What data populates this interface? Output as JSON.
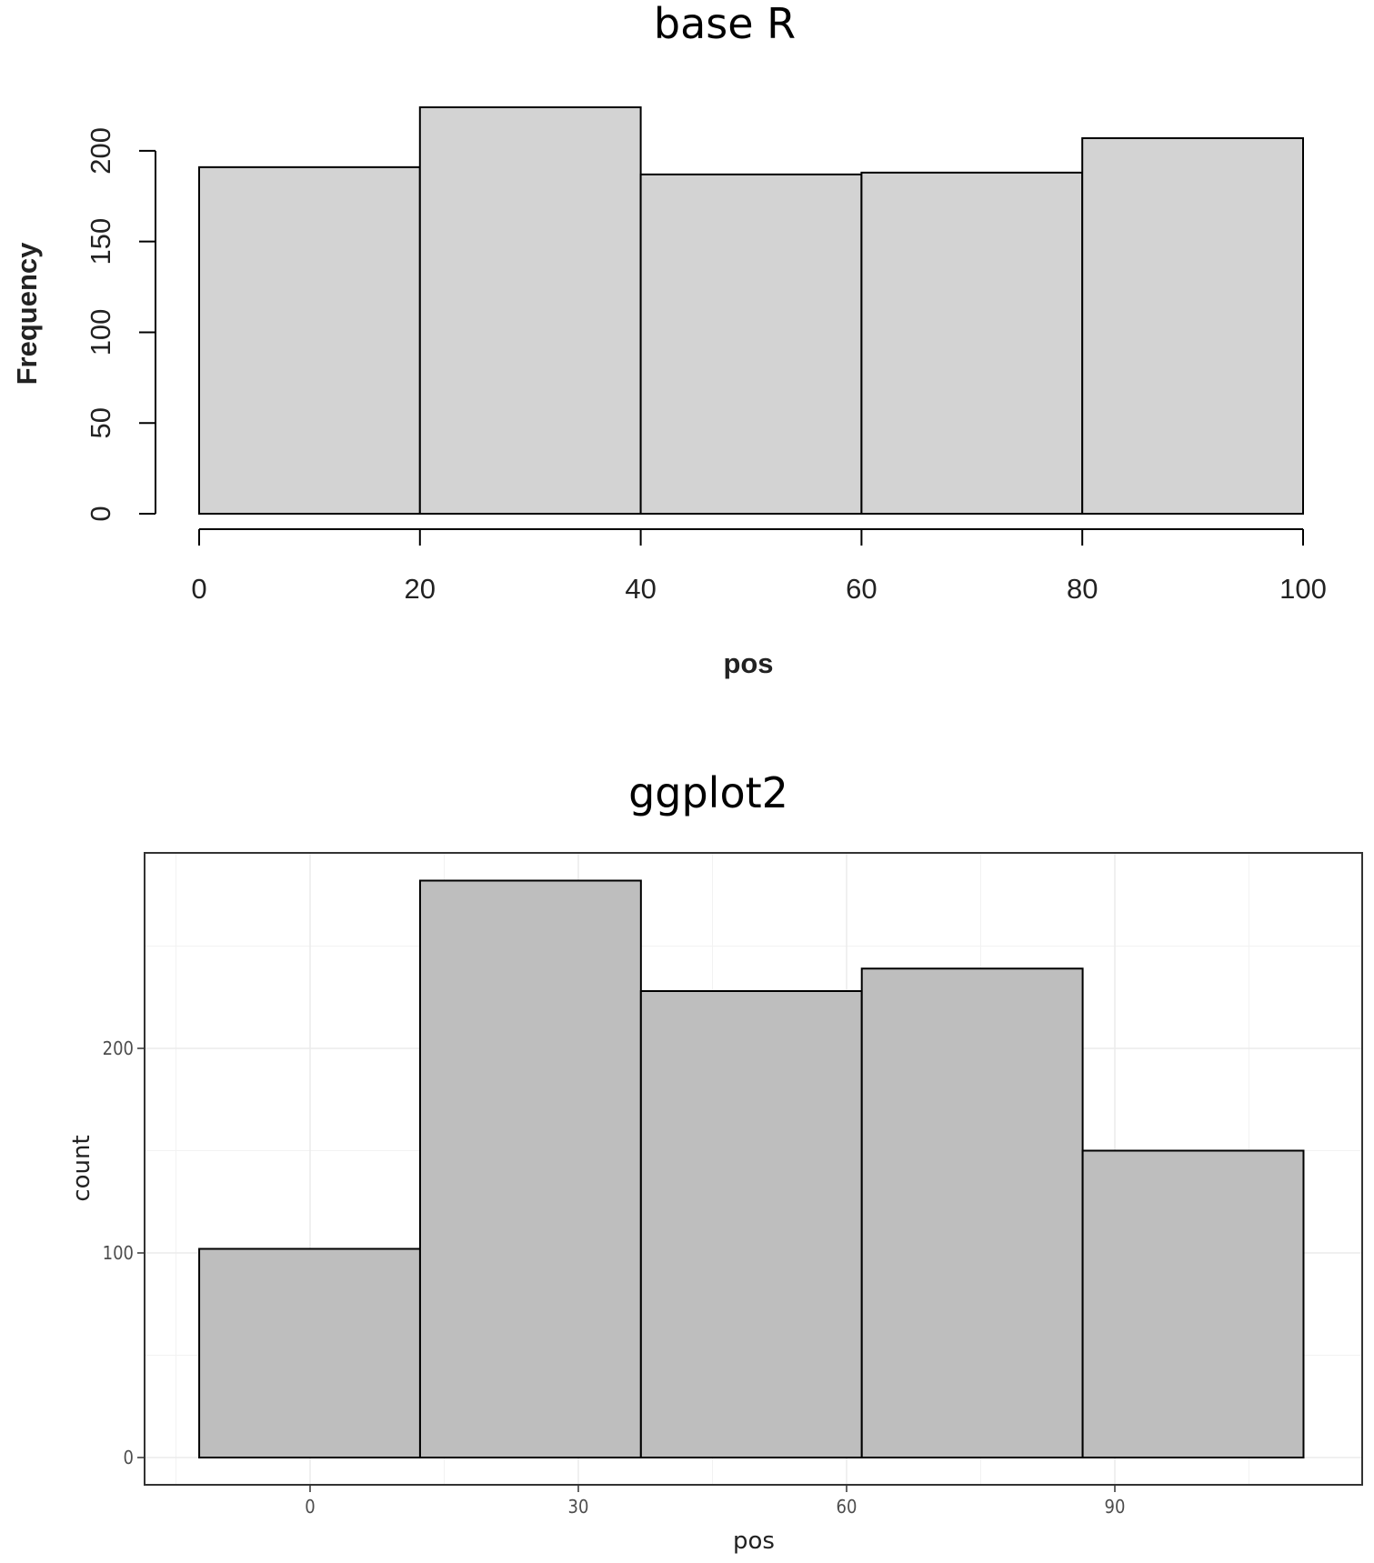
{
  "chart_data": [
    {
      "type": "bar",
      "title": "base R",
      "xlabel": "pos",
      "ylabel": "Frequency",
      "x_bins": [
        [
          0,
          20
        ],
        [
          20,
          40
        ],
        [
          40,
          60
        ],
        [
          60,
          80
        ],
        [
          80,
          100
        ]
      ],
      "values": [
        191,
        224,
        187,
        188,
        207
      ],
      "xlim": [
        0,
        100
      ],
      "ylim": [
        0,
        224
      ],
      "x_ticks": [
        "0",
        "20",
        "40",
        "60",
        "80",
        "100"
      ],
      "y_ticks": [
        "0",
        "50",
        "100",
        "150",
        "200"
      ],
      "x_tick_values": [
        0,
        20,
        40,
        60,
        80,
        100
      ],
      "y_tick_values": [
        0,
        50,
        100,
        150,
        200
      ],
      "bar_color": "#d3d3d3",
      "grid": false
    },
    {
      "type": "bar",
      "title": "ggplot2",
      "xlabel": "pos",
      "ylabel": "count",
      "x_bins": [
        [
          -12.4,
          12.3
        ],
        [
          12.3,
          37
        ],
        [
          37,
          61.7
        ],
        [
          61.7,
          86.4
        ],
        [
          86.4,
          111.1
        ]
      ],
      "values": [
        102,
        282,
        228,
        239,
        150
      ],
      "xlim": [
        -15,
        121
      ],
      "ylim": [
        0,
        296
      ],
      "x_ticks": [
        "0",
        "30",
        "60",
        "90"
      ],
      "y_ticks": [
        "0",
        "100",
        "200"
      ],
      "x_tick_values": [
        0,
        30,
        60,
        90
      ],
      "y_tick_values": [
        0,
        100,
        200
      ],
      "bar_color": "#bebebe",
      "grid": true
    }
  ]
}
